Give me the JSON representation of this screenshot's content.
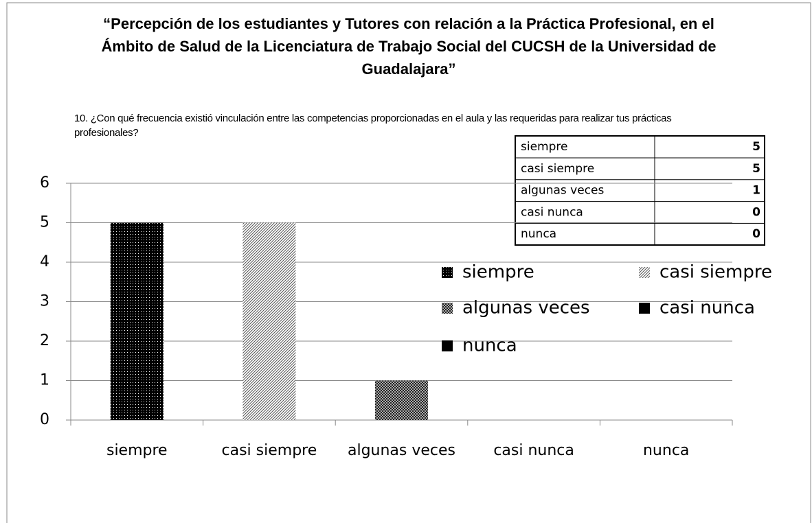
{
  "chart_data": {
    "type": "bar",
    "title": "“Percepción de los estudiantes y Tutores con relación a la Práctica Profesional, en el Ámbito de Salud de la Licenciatura de Trabajo Social del CUCSH de la Universidad de Guadalajara”",
    "subtitle": "10. ¿Con qué frecuencia existió vinculación entre las competencias proporcionadas en el aula y las requeridas para realizar tus prácticas profesionales?",
    "categories": [
      "siempre",
      "casi siempre",
      "algunas veces",
      "casi nunca",
      "nunca"
    ],
    "values": [
      5,
      5,
      1,
      0,
      0
    ],
    "patterns": [
      "dots",
      "diagonal",
      "checker",
      "solid",
      "solid"
    ],
    "ylim": [
      0,
      6
    ],
    "yticks": [
      0,
      1,
      2,
      3,
      4,
      5,
      6
    ],
    "grid": true
  }
}
